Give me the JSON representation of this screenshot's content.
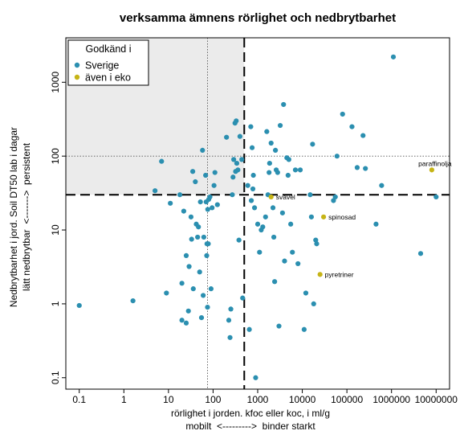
{
  "chart_data": {
    "type": "scatter",
    "title": "verksamma ämnens rörlighet och nedbrytbarhet",
    "xlabel": "rörlighet i jorden. kfoc eller koc, i ml/g",
    "xlabel2": "mobilt  <--------->  binder starkt",
    "ylabel": "Nedbrytbarhet i jord. Soil DT50 lab i dagar",
    "ylabel2": "lätt nedbrytbar  <------->  persistent",
    "x_scale": "log",
    "y_scale": "log",
    "xlim": [
      0.05,
      20000000
    ],
    "ylim": [
      0.07,
      4000
    ],
    "x_ticks": [
      {
        "value": 0.1,
        "label": "0.1"
      },
      {
        "value": 1,
        "label": "1"
      },
      {
        "value": 10,
        "label": "10"
      },
      {
        "value": 100,
        "label": "100"
      },
      {
        "value": 1000,
        "label": "1000"
      },
      {
        "value": 10000,
        "label": "10000"
      },
      {
        "value": 100000,
        "label": "100000"
      },
      {
        "value": 1000000,
        "label": "1000000"
      },
      {
        "value": 10000000,
        "label": "10000000"
      }
    ],
    "y_ticks": [
      {
        "value": 0.1,
        "label": "0.1"
      },
      {
        "value": 1,
        "label": "1"
      },
      {
        "value": 10,
        "label": "10"
      },
      {
        "value": 100,
        "label": "100"
      },
      {
        "value": 1000,
        "label": "1000"
      }
    ],
    "shaded_region": {
      "x": [
        0.05,
        500
      ],
      "y": [
        30,
        4000
      ],
      "color": "#ebebeb"
    },
    "dashed_lines": {
      "x": 500,
      "y": 30
    },
    "dotted_lines": {
      "x": 75,
      "y": 100
    },
    "legend": {
      "title": "Godkänd i",
      "position": "top-left",
      "entries": [
        {
          "label": "Sverige",
          "color": "#2b8fb0"
        },
        {
          "label": "även i eko",
          "color": "#c6b416"
        }
      ]
    },
    "series": [
      {
        "name": "Sverige",
        "color": "#2b8fb0",
        "points": [
          [
            0.1,
            0.95
          ],
          [
            1.6,
            1.1
          ],
          [
            5,
            34
          ],
          [
            7,
            85
          ],
          [
            9,
            1.4
          ],
          [
            11,
            23
          ],
          [
            18,
            30
          ],
          [
            20,
            0.6
          ],
          [
            20,
            1.9
          ],
          [
            22,
            18
          ],
          [
            25,
            0.55
          ],
          [
            25,
            4.5
          ],
          [
            28,
            0.8
          ],
          [
            29,
            3.2
          ],
          [
            32,
            15
          ],
          [
            33,
            7.5
          ],
          [
            35,
            62
          ],
          [
            36,
            1.6
          ],
          [
            40,
            45
          ],
          [
            42,
            12
          ],
          [
            45,
            8
          ],
          [
            47,
            11
          ],
          [
            50,
            2.7
          ],
          [
            52,
            24
          ],
          [
            55,
            0.65
          ],
          [
            58,
            120
          ],
          [
            60,
            1.3
          ],
          [
            62,
            8
          ],
          [
            68,
            55
          ],
          [
            70,
            24
          ],
          [
            72,
            4.5
          ],
          [
            73,
            6.5
          ],
          [
            75,
            0.9
          ],
          [
            76,
            19
          ],
          [
            78,
            6.5
          ],
          [
            80,
            26
          ],
          [
            85,
            28
          ],
          [
            90,
            1.6
          ],
          [
            95,
            20
          ],
          [
            105,
            40
          ],
          [
            110,
            60
          ],
          [
            125,
            22
          ],
          [
            200,
            180
          ],
          [
            225,
            0.6
          ],
          [
            240,
            0.35
          ],
          [
            250,
            0.85
          ],
          [
            270,
            30
          ],
          [
            280,
            52
          ],
          [
            290,
            90
          ],
          [
            310,
            280
          ],
          [
            320,
            62
          ],
          [
            330,
            300
          ],
          [
            340,
            80
          ],
          [
            360,
            65
          ],
          [
            380,
            7.3
          ],
          [
            400,
            185
          ],
          [
            440,
            90
          ],
          [
            460,
            1.2
          ],
          [
            600,
            40
          ],
          [
            650,
            0.45
          ],
          [
            700,
            250
          ],
          [
            720,
            25
          ],
          [
            750,
            130
          ],
          [
            780,
            36
          ],
          [
            800,
            55
          ],
          [
            850,
            20
          ],
          [
            900,
            0.1
          ],
          [
            1000,
            12
          ],
          [
            1100,
            5
          ],
          [
            1200,
            10
          ],
          [
            1300,
            11
          ],
          [
            1500,
            15
          ],
          [
            1600,
            215
          ],
          [
            1700,
            30
          ],
          [
            1800,
            60
          ],
          [
            1850,
            80
          ],
          [
            2000,
            150
          ],
          [
            2200,
            20
          ],
          [
            2300,
            8
          ],
          [
            2400,
            2
          ],
          [
            2500,
            120
          ],
          [
            2600,
            65
          ],
          [
            2800,
            60
          ],
          [
            3000,
            0.5
          ],
          [
            3200,
            260
          ],
          [
            3600,
            17
          ],
          [
            3800,
            500
          ],
          [
            4000,
            3.8
          ],
          [
            4500,
            95
          ],
          [
            4800,
            55
          ],
          [
            5000,
            90
          ],
          [
            5500,
            12
          ],
          [
            6000,
            5
          ],
          [
            7000,
            65
          ],
          [
            8000,
            3.5
          ],
          [
            9000,
            65
          ],
          [
            11000,
            0.45
          ],
          [
            12000,
            1.4
          ],
          [
            15000,
            30
          ],
          [
            16000,
            15
          ],
          [
            17000,
            145
          ],
          [
            18000,
            1
          ],
          [
            20000,
            7.3
          ],
          [
            21000,
            6.5
          ],
          [
            50000,
            25
          ],
          [
            55000,
            28
          ],
          [
            60000,
            100
          ],
          [
            80000,
            370
          ],
          [
            130000,
            250
          ],
          [
            170000,
            70
          ],
          [
            230000,
            190
          ],
          [
            260000,
            68
          ],
          [
            450000,
            12
          ],
          [
            600000,
            40
          ],
          [
            1100000,
            2200
          ],
          [
            4500000,
            4.8
          ],
          [
            10000000,
            28
          ]
        ]
      },
      {
        "name": "även i eko",
        "color": "#c6b416",
        "points": [
          {
            "x": 2000,
            "y": 28,
            "label": "svavel"
          },
          {
            "x": 30000,
            "y": 15,
            "label": "spinosad"
          },
          {
            "x": 25000,
            "y": 2.5,
            "label": "pyretriner"
          },
          {
            "x": 8000000,
            "y": 65,
            "label": "paraffinolja"
          }
        ]
      }
    ]
  }
}
